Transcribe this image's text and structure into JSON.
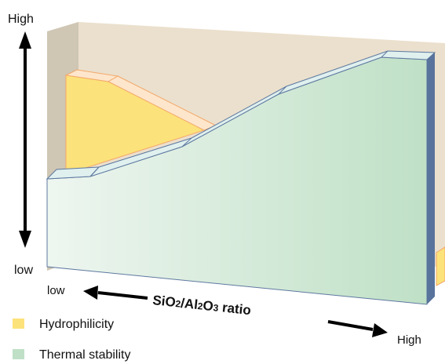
{
  "y_axis": {
    "high_label": "High",
    "low_label": "low"
  },
  "x_axis": {
    "low_label": "low",
    "high_label": "High",
    "title": {
      "base1": "SiO",
      "sub1": "2",
      "mid": "/Al",
      "sub2": "2",
      "mid2": "O",
      "sub3": "3",
      "tail": " ratio"
    }
  },
  "legend": [
    {
      "label": "Hydrophilicity",
      "color": "#fce27a"
    },
    {
      "label": "Thermal stability",
      "color": "#bfe0c6"
    }
  ],
  "colors": {
    "backdrop": "#ebe0cd",
    "backdrop_side": "#cfc6b4",
    "hydrophilicity": "#fce27a",
    "hydrophilicity_top": "#fde6cc",
    "hydrophilicity_edge": "#f3a86a",
    "thermal_front_light": "#eef6f0",
    "thermal_front_dark": "#bfe0c6",
    "thermal_top": "#dff0ee",
    "thermal_edge": "#5e78a0",
    "thermal_side": "#58739c"
  }
}
